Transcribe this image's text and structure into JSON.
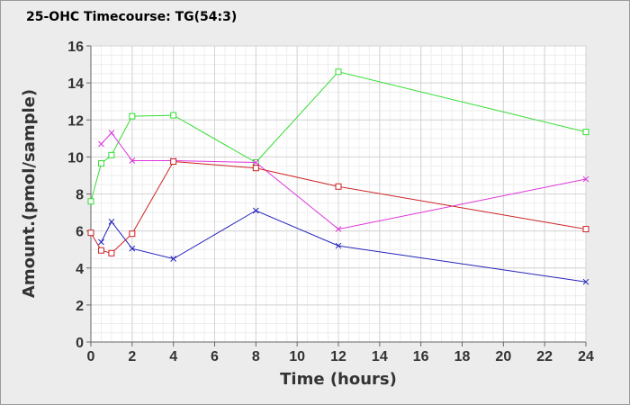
{
  "chart_data": {
    "type": "line",
    "title": "25-OHC Timecourse: TG(54:3)",
    "xlabel": "Time (hours)",
    "ylabel": "Amount.(pmol/sample)",
    "xlim": [
      0,
      24
    ],
    "ylim": [
      0,
      16
    ],
    "x_ticks": [
      0,
      2,
      4,
      6,
      8,
      10,
      12,
      14,
      16,
      18,
      20,
      22,
      24
    ],
    "y_ticks": [
      0,
      2,
      4,
      6,
      8,
      10,
      12,
      14,
      16
    ],
    "grid": true,
    "series": [
      {
        "color": "#33dd33",
        "marker": "square",
        "points": [
          [
            0,
            7.6
          ],
          [
            0.5,
            9.65
          ],
          [
            1,
            10.1
          ],
          [
            2,
            12.2
          ],
          [
            4,
            12.25
          ],
          [
            8,
            9.7
          ],
          [
            12,
            14.6
          ],
          [
            24,
            11.35
          ]
        ]
      },
      {
        "color": "#dd33dd",
        "marker": "x",
        "points": [
          [
            0.5,
            10.7
          ],
          [
            1,
            11.3
          ],
          [
            2,
            9.8
          ],
          [
            4,
            9.8
          ],
          [
            8,
            9.7
          ],
          [
            12,
            6.1
          ],
          [
            24,
            8.8
          ]
        ]
      },
      {
        "color": "#cc2222",
        "marker": "square",
        "points": [
          [
            0,
            5.9
          ],
          [
            0.5,
            4.95
          ],
          [
            1,
            4.8
          ],
          [
            2,
            5.85
          ],
          [
            4,
            9.75
          ],
          [
            8,
            9.4
          ],
          [
            12,
            8.4
          ],
          [
            24,
            6.1
          ]
        ]
      },
      {
        "color": "#2222bb",
        "marker": "x",
        "points": [
          [
            0.5,
            5.4
          ],
          [
            1,
            6.5
          ],
          [
            2,
            5.05
          ],
          [
            4,
            4.5
          ],
          [
            8,
            7.1
          ],
          [
            12,
            5.2
          ],
          [
            24,
            3.25
          ]
        ]
      }
    ]
  }
}
